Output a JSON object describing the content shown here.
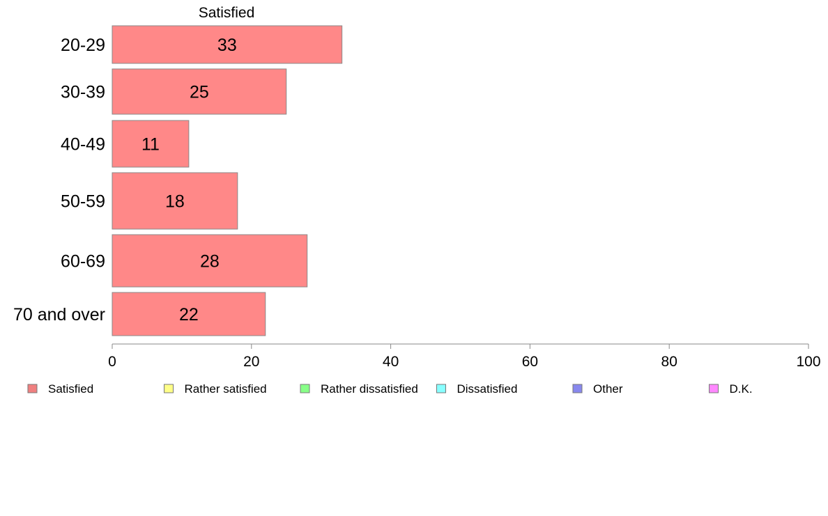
{
  "chart_data": {
    "type": "bar",
    "orientation": "horizontal",
    "title": "Satisfied",
    "categories": [
      "20-29",
      "30-39",
      "40-49",
      "50-59",
      "60-69",
      "70 and over"
    ],
    "series": [
      {
        "name": "Satisfied",
        "values": [
          33,
          25,
          11,
          18,
          28,
          22
        ],
        "labels": [
          "33",
          "25",
          "11",
          "18",
          "28",
          "22"
        ],
        "color": "#ff8888"
      }
    ],
    "xlim": [
      0,
      100
    ],
    "x_ticks": [
      0,
      20,
      40,
      60,
      80,
      100
    ],
    "x_tick_labels": [
      "0",
      "20",
      "40",
      "60",
      "80",
      "100"
    ],
    "grid": false,
    "bar_border_color": "#888888",
    "axis_color": "#888888",
    "legend": {
      "position": "bottom",
      "items": [
        {
          "label": "Satisfied",
          "color": "#f08080"
        },
        {
          "label": "Rather satisfied",
          "color": "#ffff88"
        },
        {
          "label": "Rather dissatisfied",
          "color": "#88ff88"
        },
        {
          "label": "Dissatisfied",
          "color": "#88ffff"
        },
        {
          "label": "Other",
          "color": "#8888ee"
        },
        {
          "label": "D.K.",
          "color": "#ff88ff"
        }
      ]
    }
  }
}
